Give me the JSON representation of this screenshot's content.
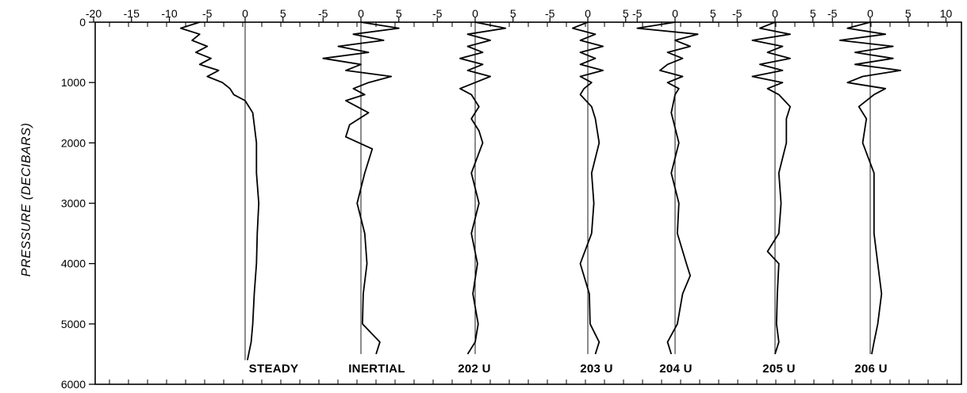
{
  "chart_data": {
    "type": "line",
    "ylabel": "PRESSURE (DECIBARS)",
    "ylim": [
      0,
      6000
    ],
    "y_inverted": true,
    "y_ticks": [
      0,
      1000,
      2000,
      3000,
      4000,
      5000,
      6000
    ],
    "y_tick_labels": [
      "0",
      "1000",
      "2000",
      "3000",
      "4000",
      "5000",
      "6000"
    ],
    "top_tick_labels": [
      "-20",
      "-15",
      "-10",
      "-5",
      "0",
      "5",
      "-5",
      "0",
      "5",
      "-5",
      "0",
      "5",
      "-5",
      "0",
      "5",
      "-5",
      "0",
      "5",
      "-5",
      "0",
      "5",
      "-5",
      "0",
      "5",
      "10"
    ],
    "grid": false,
    "panels": [
      {
        "label": "STEADY",
        "xlim": [
          -20,
          5
        ],
        "pressure": [
          0,
          100,
          200,
          300,
          400,
          500,
          600,
          700,
          800,
          900,
          1000,
          1100,
          1200,
          1300,
          1400,
          1500,
          1700,
          2000,
          2500,
          3000,
          3500,
          4000,
          4500,
          5000,
          5300,
          5600
        ],
        "values": [
          -6,
          -8.5,
          -6,
          -7,
          -5,
          -6.5,
          -4.5,
          -6,
          -3.5,
          -5,
          -3,
          -2,
          -1.5,
          0,
          0.5,
          1,
          1.2,
          1.5,
          1.5,
          1.8,
          1.6,
          1.5,
          1.2,
          1.0,
          0.8,
          0.3
        ]
      },
      {
        "label": "INERTIAL",
        "xlim": [
          -5,
          5
        ],
        "pressure": [
          0,
          100,
          200,
          300,
          400,
          500,
          600,
          700,
          800,
          900,
          1000,
          1100,
          1200,
          1300,
          1500,
          1700,
          1900,
          2100,
          2500,
          3000,
          3500,
          4000,
          4500,
          5000,
          5300,
          5500
        ],
        "values": [
          0,
          5,
          -1,
          3,
          -3,
          1,
          -5,
          0,
          -2,
          4,
          1,
          -1,
          0.5,
          -2,
          1,
          -1.5,
          -2,
          1.5,
          0.5,
          -0.5,
          0.5,
          0.8,
          0.3,
          0.2,
          2.5,
          2
        ],
        "x_tick_labels": [
          "-5",
          "0",
          "5"
        ]
      },
      {
        "label": "202 U",
        "xlim": [
          -5,
          5
        ],
        "pressure": [
          0,
          100,
          200,
          300,
          400,
          500,
          600,
          700,
          800,
          900,
          1000,
          1100,
          1200,
          1400,
          1600,
          1800,
          2000,
          2500,
          3000,
          3500,
          4000,
          4500,
          5000,
          5300,
          5500
        ],
        "values": [
          0,
          4,
          -1,
          2,
          -1,
          1,
          -2,
          1,
          -1,
          2,
          0,
          -2,
          -0.5,
          0.5,
          -0.5,
          0.5,
          1,
          -0.5,
          0.5,
          -0.5,
          0.3,
          -0.3,
          0.4,
          0,
          -1
        ],
        "x_tick_labels": [
          "-5",
          "0",
          "5"
        ]
      },
      {
        "label": "203 U",
        "xlim": [
          -5,
          5
        ],
        "pressure": [
          0,
          100,
          200,
          300,
          400,
          500,
          600,
          700,
          800,
          900,
          1000,
          1100,
          1200,
          1400,
          1600,
          2000,
          2500,
          3000,
          3500,
          4000,
          4500,
          5000,
          5300,
          5500
        ],
        "values": [
          0,
          -2,
          1,
          -1,
          2,
          -1,
          1,
          -1,
          2,
          -1,
          0.5,
          -0.5,
          -1,
          0.5,
          1,
          1.5,
          0.5,
          0.8,
          0.5,
          -1,
          0.2,
          0.3,
          1.5,
          1
        ],
        "x_tick_labels": [
          "-5",
          "0",
          "5"
        ]
      },
      {
        "label": "204 U",
        "xlim": [
          -5,
          5
        ],
        "pressure": [
          0,
          100,
          200,
          300,
          400,
          500,
          600,
          700,
          800,
          900,
          1000,
          1100,
          1200,
          1500,
          2000,
          2500,
          3000,
          3500,
          4000,
          4200,
          4500,
          5000,
          5300,
          5500
        ],
        "values": [
          0,
          -5,
          3,
          0,
          2,
          -1,
          1,
          -1,
          -2,
          1,
          -1,
          0.5,
          0,
          -0.5,
          0.5,
          -0.5,
          0.5,
          0.3,
          1.5,
          2,
          1,
          0.3,
          -1,
          -0.5
        ],
        "x_tick_labels": [
          "-5",
          "0",
          "5"
        ]
      },
      {
        "label": "205 U",
        "xlim": [
          -5,
          5
        ],
        "pressure": [
          0,
          100,
          200,
          300,
          400,
          500,
          600,
          700,
          800,
          900,
          1000,
          1100,
          1200,
          1400,
          1600,
          2000,
          2500,
          3000,
          3500,
          3800,
          4000,
          4500,
          5000,
          5300,
          5500
        ],
        "values": [
          0,
          -2,
          2,
          -3,
          1,
          -1,
          2,
          -2,
          1,
          -3,
          1,
          -1,
          0.5,
          2,
          1.5,
          1.5,
          0.5,
          0.8,
          0.5,
          -1,
          0.5,
          0.3,
          0.2,
          0.5,
          0
        ],
        "x_tick_labels": [
          "-5",
          "0",
          "5"
        ]
      },
      {
        "label": "206 U",
        "xlim": [
          -5,
          10
        ],
        "pressure": [
          0,
          100,
          200,
          300,
          400,
          500,
          600,
          700,
          800,
          900,
          1000,
          1100,
          1200,
          1400,
          1600,
          2000,
          2500,
          3000,
          3500,
          4000,
          4500,
          5000,
          5300,
          5500
        ],
        "values": [
          0,
          -3,
          2,
          -4,
          3,
          -2,
          3,
          -2,
          4,
          -1,
          -3,
          2,
          0.5,
          -1.5,
          -0.5,
          -1,
          0.5,
          0.5,
          0.5,
          1,
          1.5,
          1,
          0.5,
          0.2
        ],
        "x_tick_labels": [
          "-5",
          "0",
          "5",
          "10"
        ]
      }
    ]
  }
}
